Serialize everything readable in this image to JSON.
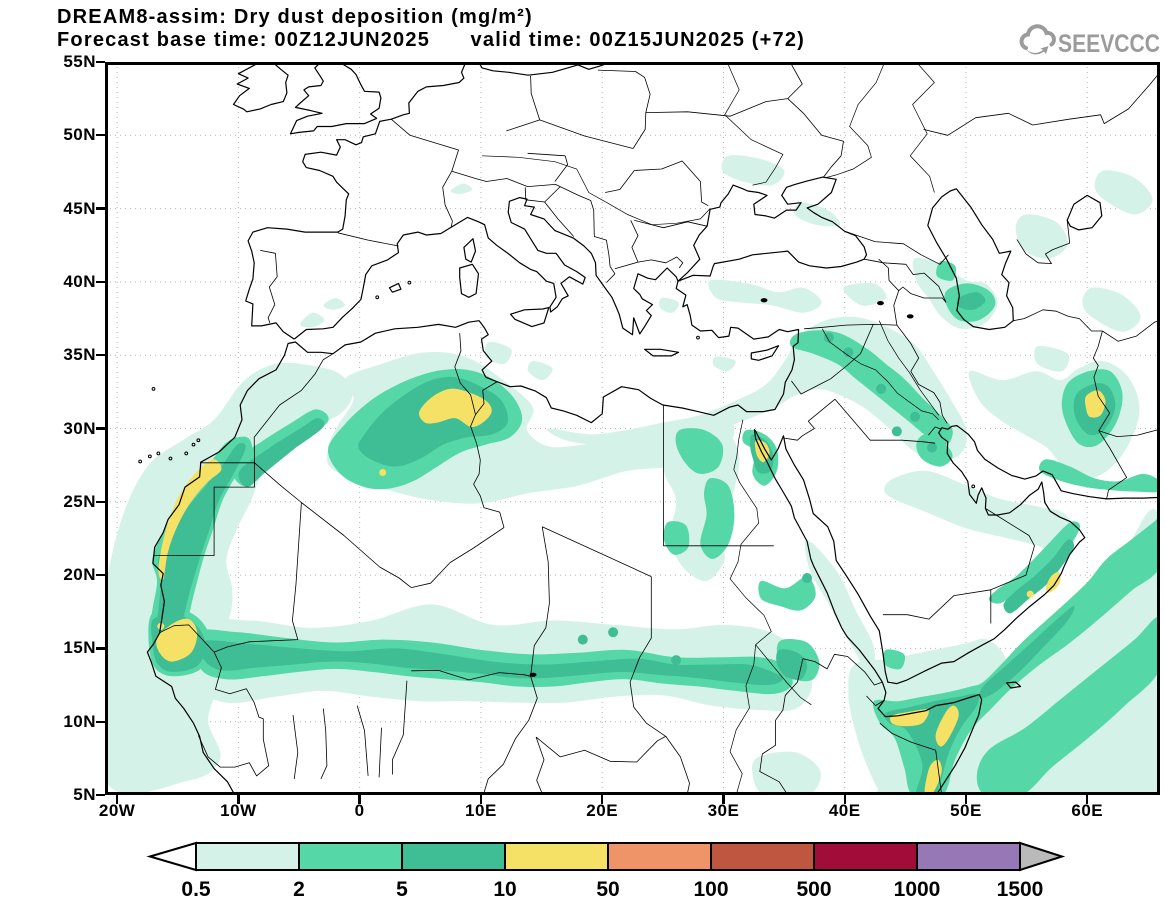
{
  "header": {
    "line1": "DREAM8-assim: Dry dust deposition (mg/m²)",
    "line2": "Forecast base time: 00Z12JUN2025      valid time: 00Z15JUN2025 (+72)"
  },
  "logo": {
    "label": "SEEVCCC",
    "color": "#9b9b9b",
    "icon": "cloud-icon"
  },
  "axes": {
    "lat_ticks": [
      {
        "label": "55N",
        "value": 55
      },
      {
        "label": "50N",
        "value": 50
      },
      {
        "label": "45N",
        "value": 45
      },
      {
        "label": "40N",
        "value": 40
      },
      {
        "label": "35N",
        "value": 35
      },
      {
        "label": "30N",
        "value": 30
      },
      {
        "label": "25N",
        "value": 25
      },
      {
        "label": "20N",
        "value": 20
      },
      {
        "label": "15N",
        "value": 15
      },
      {
        "label": "10N",
        "value": 10
      },
      {
        "label": "5N",
        "value": 5
      }
    ],
    "lon_ticks": [
      {
        "label": "20W",
        "value": -20
      },
      {
        "label": "10W",
        "value": -10
      },
      {
        "label": "0",
        "value": 0
      },
      {
        "label": "10E",
        "value": 10
      },
      {
        "label": "20E",
        "value": 20
      },
      {
        "label": "30E",
        "value": 30
      },
      {
        "label": "40E",
        "value": 40
      },
      {
        "label": "50E",
        "value": 50
      },
      {
        "label": "60E",
        "value": 60
      }
    ],
    "lon_range": [
      -21,
      66
    ],
    "lat_range": [
      5,
      55
    ]
  },
  "legend": {
    "tick_labels": [
      "0.5",
      "2",
      "5",
      "10",
      "50",
      "100",
      "500",
      "1000",
      "1500"
    ],
    "below_color": "#ffffff",
    "bin_colors": [
      "#d4f2e8",
      "#56d7a8",
      "#3fbd94",
      "#f4e165",
      "#ef9369",
      "#bf5740",
      "#a00d38",
      "#9678b6"
    ],
    "above_color": "#bababa"
  },
  "chart_data": {
    "type": "filled-contour-map",
    "title": "DREAM8-assim: Dry dust deposition (mg/m²)",
    "forecast_base_time": "00Z12JUN2025",
    "valid_time": "00Z15JUN2025",
    "lead_hours": "+72",
    "units": "mg/m²",
    "contour_levels": [
      0.5,
      2,
      5,
      10,
      50,
      100,
      500,
      1000,
      1500
    ],
    "lon_range_deg": [
      -21,
      66
    ],
    "lat_range_deg": [
      5,
      55
    ],
    "grid": "dotted, 5 deg latitude / 10 deg longitude",
    "max_shaded_bin_on_map": "10-50 mg/m²",
    "main_deposition_areas": [
      "Western Sahara / Mauritania coast",
      "Senegal",
      "Sahel band ~13-15N",
      "NE Algeria - Tunisia - NW Libya",
      "Gulf of Suez",
      "Nile valley / W Egypt",
      "Gulf of Aden and Somalia coast",
      "Oman coast",
      "East Iran / Afghan border",
      "Mesopotamia",
      "South Caspian",
      "Arabian Sea diagonal bands"
    ]
  }
}
